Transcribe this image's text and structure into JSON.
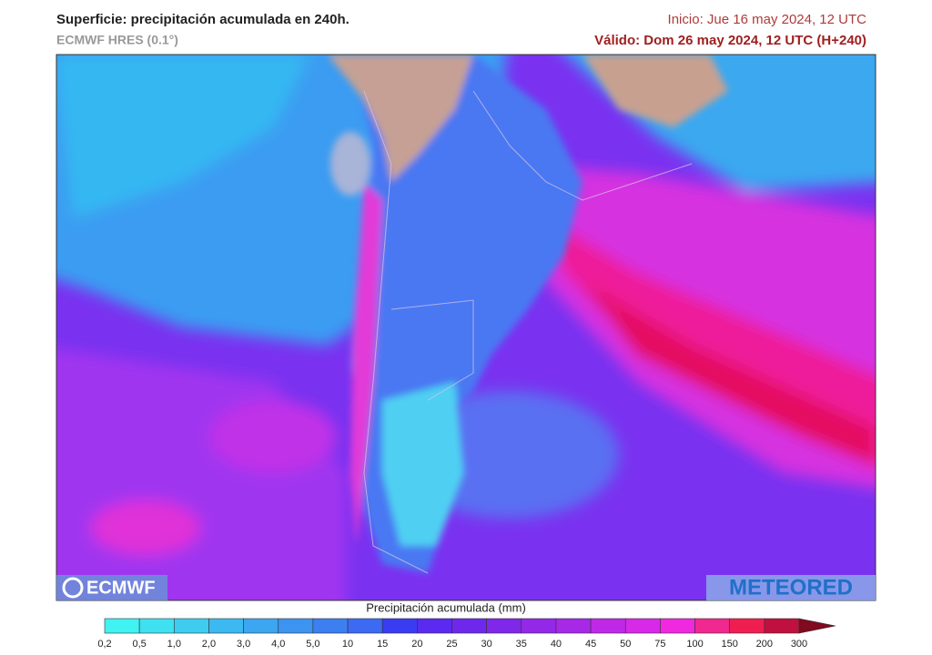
{
  "header": {
    "title": "Superficie: precipitación acumulada en 240h.",
    "subtitle": "ECMWF HRES (0.1°)",
    "init": "Inicio: Jue 16 may 2024, 12 UTC",
    "valid": "Válido: Dom 26 may 2024, 12 UTC (H+240)"
  },
  "logos": {
    "left": "ECMWF",
    "right": "METEORED"
  },
  "legend": {
    "title": "Precipitación acumulada (mm)",
    "labels": [
      "0,2",
      "0,5",
      "1,0",
      "2,0",
      "3,0",
      "4,0",
      "5,0",
      "10",
      "15",
      "20",
      "25",
      "30",
      "35",
      "40",
      "45",
      "50",
      "75",
      "100",
      "150",
      "200",
      "300"
    ],
    "colors": [
      "#40f2f2",
      "#3fe0f0",
      "#3ecdf0",
      "#3cb9f0",
      "#3ca6f0",
      "#3c93f0",
      "#3c7ff0",
      "#3c6af2",
      "#3a3cf2",
      "#5a2af0",
      "#6e28ec",
      "#8028ea",
      "#9428e8",
      "#a828e8",
      "#c028e8",
      "#d828e8",
      "#f028e0",
      "#f02890",
      "#f01e50",
      "#c01040",
      "#800a1e"
    ]
  }
}
